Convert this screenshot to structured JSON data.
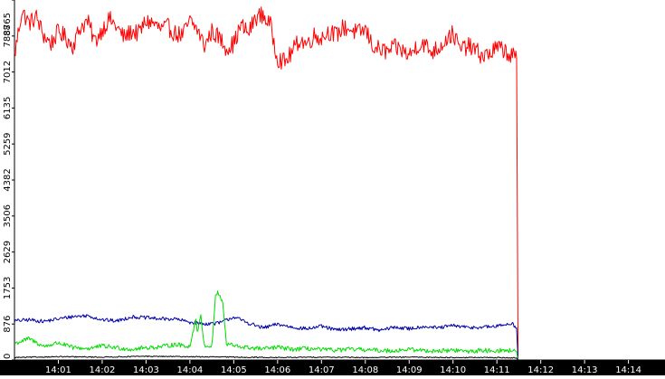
{
  "chart_data": {
    "type": "line",
    "title": "",
    "xlabel": "",
    "ylabel": "",
    "ylim": [
      0,
      8765
    ],
    "xlim": [
      "14:00:00",
      "14:14:50"
    ],
    "grid": false,
    "legend": "none",
    "y_ticks": [
      "0",
      "876",
      "1753",
      "2629",
      "3506",
      "4382",
      "5259",
      "6135",
      "7012",
      "7888",
      "8765"
    ],
    "x_ticks": [
      "14:01",
      "14:02",
      "14:03",
      "14:04",
      "14:05",
      "14:06",
      "14:07",
      "14:08",
      "14:09",
      "14:10",
      "14:11",
      "14:12",
      "14:13",
      "14:14"
    ],
    "series": [
      {
        "color": "#ff0000",
        "x": [
          "14:00:00",
          "14:00:10",
          "14:00:20",
          "14:00:30",
          "14:00:40",
          "14:00:50",
          "14:01:00",
          "14:01:10",
          "14:01:20",
          "14:01:30",
          "14:01:40",
          "14:01:50",
          "14:02:00",
          "14:02:10",
          "14:02:20",
          "14:02:30",
          "14:02:40",
          "14:02:50",
          "14:03:00",
          "14:03:10",
          "14:03:20",
          "14:03:30",
          "14:03:40",
          "14:03:50",
          "14:04:00",
          "14:04:10",
          "14:04:20",
          "14:04:30",
          "14:04:40",
          "14:04:50",
          "14:05:00",
          "14:05:10",
          "14:05:20",
          "14:05:30",
          "14:05:40",
          "14:05:50",
          "14:06:00",
          "14:06:10",
          "14:06:20",
          "14:06:30",
          "14:06:40",
          "14:06:50",
          "14:07:00",
          "14:07:10",
          "14:07:20",
          "14:07:30",
          "14:07:40",
          "14:07:50",
          "14:08:00",
          "14:08:10",
          "14:08:20",
          "14:08:30",
          "14:08:40",
          "14:08:50",
          "14:09:00",
          "14:09:10",
          "14:09:20",
          "14:09:30",
          "14:09:40",
          "14:09:50",
          "14:10:00",
          "14:10:10",
          "14:10:20",
          "14:10:30",
          "14:10:40",
          "14:10:50",
          "14:11:00",
          "14:11:10",
          "14:11:20",
          "14:11:27",
          "14:11:29"
        ],
        "values": [
          7400,
          8500,
          8200,
          8350,
          7900,
          7700,
          8000,
          7850,
          7650,
          8100,
          8250,
          7750,
          8050,
          8300,
          8100,
          7850,
          8000,
          7950,
          8250,
          8200,
          8050,
          8100,
          7950,
          7900,
          8250,
          8050,
          7650,
          8000,
          7850,
          7600,
          7700,
          8150,
          7950,
          8350,
          8400,
          8150,
          7350,
          7250,
          7500,
          7800,
          7700,
          7900,
          7850,
          8000,
          7900,
          8100,
          8050,
          7950,
          8050,
          7650,
          7550,
          7500,
          7600,
          7550,
          7400,
          7650,
          7700,
          7500,
          7600,
          7800,
          7950,
          7550,
          7650,
          7550,
          7400,
          7450,
          7600,
          7550,
          7400,
          7350,
          0
        ]
      },
      {
        "color": "#0000aa",
        "x": [
          "14:00:00",
          "14:00:20",
          "14:00:40",
          "14:01:00",
          "14:01:20",
          "14:01:40",
          "14:02:00",
          "14:02:20",
          "14:02:40",
          "14:03:00",
          "14:03:20",
          "14:03:40",
          "14:04:00",
          "14:04:20",
          "14:04:40",
          "14:05:00",
          "14:05:20",
          "14:05:40",
          "14:06:00",
          "14:06:20",
          "14:06:40",
          "14:07:00",
          "14:07:20",
          "14:07:40",
          "14:08:00",
          "14:08:20",
          "14:08:40",
          "14:09:00",
          "14:09:20",
          "14:09:40",
          "14:10:00",
          "14:10:20",
          "14:10:40",
          "14:11:00",
          "14:11:20",
          "14:11:27",
          "14:11:29"
        ],
        "values": [
          950,
          980,
          940,
          1000,
          1060,
          1080,
          980,
          950,
          1050,
          1030,
          1000,
          1000,
          920,
          880,
          900,
          1050,
          900,
          780,
          870,
          800,
          760,
          820,
          730,
          760,
          790,
          720,
          800,
          760,
          820,
          780,
          840,
          790,
          800,
          820,
          900,
          780,
          0
        ]
      },
      {
        "color": "#00dd00",
        "x": [
          "14:00:00",
          "14:00:20",
          "14:00:40",
          "14:01:00",
          "14:01:20",
          "14:01:40",
          "14:02:00",
          "14:02:20",
          "14:02:40",
          "14:03:00",
          "14:03:20",
          "14:03:40",
          "14:04:00",
          "14:04:05",
          "14:04:08",
          "14:04:10",
          "14:04:15",
          "14:04:20",
          "14:04:30",
          "14:04:35",
          "14:04:38",
          "14:04:45",
          "14:04:50",
          "14:04:55",
          "14:05:00",
          "14:05:20",
          "14:05:40",
          "14:06:00",
          "14:06:20",
          "14:06:40",
          "14:07:00",
          "14:07:20",
          "14:07:40",
          "14:08:00",
          "14:08:20",
          "14:08:40",
          "14:09:00",
          "14:09:20",
          "14:09:40",
          "14:10:00",
          "14:10:20",
          "14:10:40",
          "14:11:00",
          "14:11:20",
          "14:11:27",
          "14:11:29"
        ],
        "values": [
          400,
          520,
          330,
          420,
          300,
          280,
          340,
          300,
          260,
          300,
          320,
          380,
          330,
          750,
          1000,
          700,
          1050,
          350,
          330,
          1550,
          1650,
          1400,
          350,
          400,
          340,
          300,
          270,
          310,
          260,
          280,
          250,
          240,
          260,
          250,
          230,
          230,
          260,
          230,
          220,
          240,
          210,
          230,
          230,
          230,
          200,
          0
        ]
      },
      {
        "color": "#000000",
        "x": [
          "14:00:00",
          "14:01:00",
          "14:02:00",
          "14:03:00",
          "14:04:00",
          "14:05:00",
          "14:06:00",
          "14:07:00",
          "14:08:00",
          "14:09:00",
          "14:10:00",
          "14:11:00",
          "14:11:27",
          "14:11:29"
        ],
        "values": [
          60,
          80,
          70,
          90,
          80,
          70,
          60,
          70,
          60,
          70,
          60,
          60,
          50,
          0
        ]
      }
    ]
  }
}
